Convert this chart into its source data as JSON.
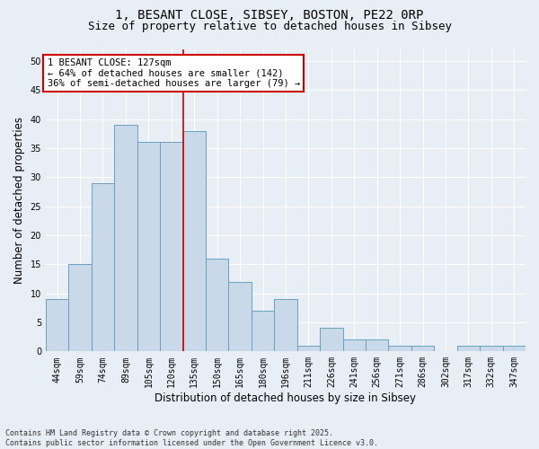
{
  "title_line1": "1, BESANT CLOSE, SIBSEY, BOSTON, PE22 0RP",
  "title_line2": "Size of property relative to detached houses in Sibsey",
  "xlabel": "Distribution of detached houses by size in Sibsey",
  "ylabel": "Number of detached properties",
  "categories": [
    "44sqm",
    "59sqm",
    "74sqm",
    "89sqm",
    "105sqm",
    "120sqm",
    "135sqm",
    "150sqm",
    "165sqm",
    "180sqm",
    "196sqm",
    "211sqm",
    "226sqm",
    "241sqm",
    "256sqm",
    "271sqm",
    "286sqm",
    "302sqm",
    "317sqm",
    "332sqm",
    "347sqm"
  ],
  "values": [
    9,
    15,
    29,
    39,
    36,
    36,
    38,
    16,
    12,
    7,
    9,
    1,
    4,
    2,
    2,
    1,
    1,
    0,
    1,
    1,
    1
  ],
  "bar_color": "#c9d9ea",
  "bar_edge_color": "#6a9fc0",
  "vline_x_index": 6,
  "vline_color": "#cc0000",
  "annotation_text": "1 BESANT CLOSE: 127sqm\n← 64% of detached houses are smaller (142)\n36% of semi-detached houses are larger (79) →",
  "annotation_box_color": "#ffffff",
  "annotation_box_edge": "#cc0000",
  "ylim": [
    0,
    52
  ],
  "yticks": [
    0,
    5,
    10,
    15,
    20,
    25,
    30,
    35,
    40,
    45,
    50
  ],
  "bg_color": "#e8eef5",
  "grid_color": "#ffffff",
  "footer": "Contains HM Land Registry data © Crown copyright and database right 2025.\nContains public sector information licensed under the Open Government Licence v3.0.",
  "title_fontsize": 10,
  "subtitle_fontsize": 9,
  "tick_fontsize": 7,
  "label_fontsize": 8.5,
  "annotation_fontsize": 7.5,
  "footer_fontsize": 6
}
